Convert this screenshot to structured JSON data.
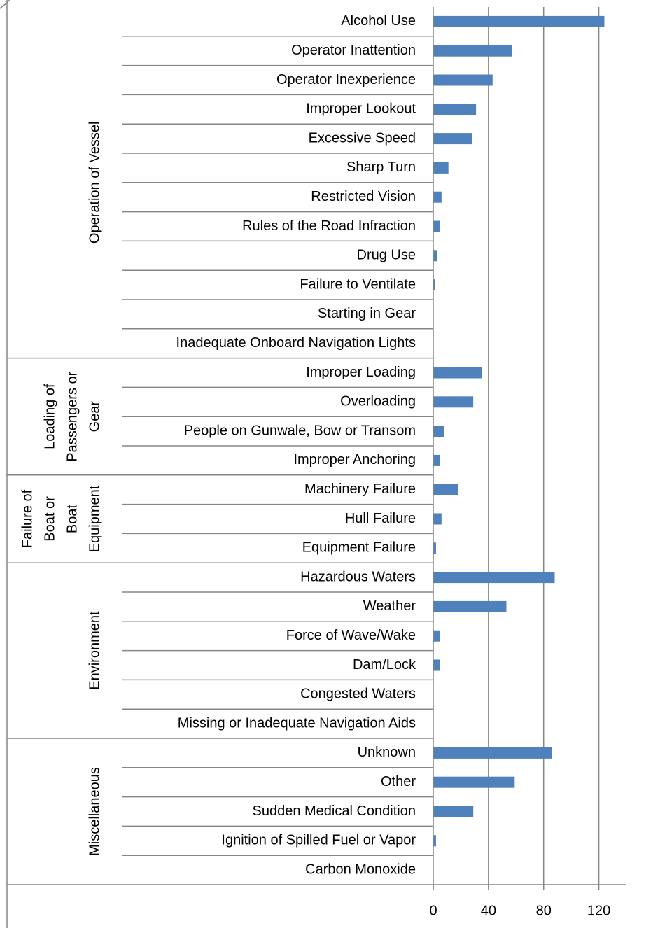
{
  "chart_data": {
    "type": "bar",
    "orientation": "horizontal",
    "color": "#4f81bd",
    "xlim": [
      0,
      140
    ],
    "xticks": [
      0,
      40,
      80,
      120
    ],
    "grid": true,
    "groups": [
      {
        "label": [
          "Operation of Vessel"
        ],
        "categories": [
          "Alcohol Use",
          "Operator Inattention",
          "Operator Inexperience",
          "Improper Lookout",
          "Excessive Speed",
          "Sharp Turn",
          "Restricted Vision",
          "Rules of the Road Infraction",
          "Drug Use",
          "Failure to Ventilate",
          "Starting in Gear",
          "Inadequate Onboard Navigation Lights"
        ],
        "values": [
          124,
          57,
          43,
          31,
          28,
          11,
          6,
          5,
          3,
          1,
          0,
          0
        ]
      },
      {
        "label": [
          "Loading of",
          "Passengers or",
          "Gear"
        ],
        "categories": [
          "Improper Loading",
          "Overloading",
          "People on Gunwale, Bow or Transom",
          "Improper Anchoring"
        ],
        "values": [
          35,
          29,
          8,
          5
        ]
      },
      {
        "label": [
          "Failure of",
          "Boat or",
          "Boat",
          "Equipment"
        ],
        "categories": [
          "Machinery Failure",
          "Hull Failure",
          "Equipment Failure"
        ],
        "values": [
          18,
          6,
          2
        ]
      },
      {
        "label": [
          "Environment"
        ],
        "categories": [
          "Hazardous Waters",
          "Weather",
          "Force of Wave/Wake",
          "Dam/Lock",
          "Congested Waters",
          "Missing or Inadequate Navigation Aids"
        ],
        "values": [
          88,
          53,
          5,
          5,
          0,
          0
        ]
      },
      {
        "label": [
          "Miscellaneous"
        ],
        "categories": [
          "Unknown",
          "Other",
          "Sudden Medical Condition",
          "Ignition of Spilled Fuel or Vapor",
          "Carbon Monoxide"
        ],
        "values": [
          86,
          59,
          29,
          2,
          0
        ]
      }
    ]
  }
}
